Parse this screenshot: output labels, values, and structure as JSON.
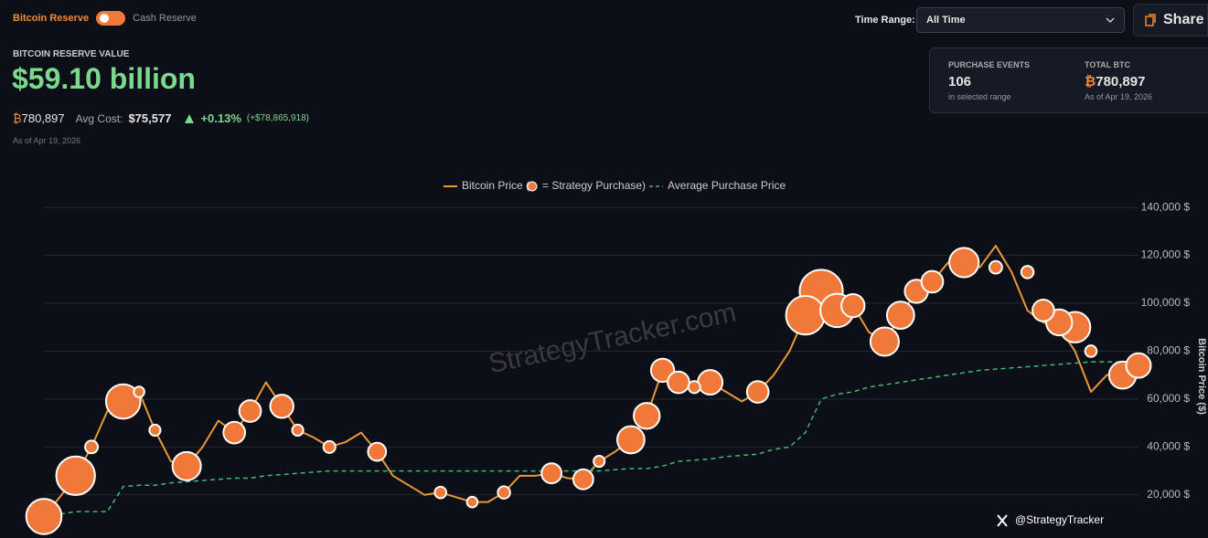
{
  "header": {
    "toggle_left": "Bitcoin Reserve",
    "toggle_right": "Cash Reserve",
    "reserve_label": "BITCOIN RESERVE VALUE",
    "reserve_value": "$59.10 billion",
    "btc_symbol": "₿",
    "btc_amount": "780,897",
    "avg_cost_label": "Avg Cost:",
    "avg_cost": "$75,577",
    "change_pct": "+0.13%",
    "change_abs": "(+$78,865,918)",
    "as_of": "As of Apr 19, 2026",
    "time_range_label": "Time Range:",
    "time_range_value": "All Time",
    "share": "Share"
  },
  "stats": [
    {
      "label": "PURCHASE EVENTS",
      "value": "106",
      "note": "in selected range"
    },
    {
      "label": "TOTAL BTC",
      "symbol": "₿",
      "value": "780,897",
      "note": "As of Apr 19, 2026"
    }
  ],
  "watermark": "StrategyTracker.com",
  "credit": "@StrategyTracker",
  "chart_data": {
    "type": "line",
    "y_label": "Bitcoin Price ($)",
    "grid": true,
    "ylim": [
      2000,
      145000
    ],
    "yticks": [
      {
        "value": 20000,
        "label": "20,000 $"
      },
      {
        "value": 40000,
        "label": "40,000 $"
      },
      {
        "value": 60000,
        "label": "60,000 $"
      },
      {
        "value": 80000,
        "label": "80,000 $"
      },
      {
        "value": 100000,
        "label": "100,000 $"
      },
      {
        "value": 120000,
        "label": "120,000 $"
      },
      {
        "value": 140000,
        "label": "140,000 $"
      }
    ],
    "categories": [
      null,
      null,
      null,
      null,
      null,
      null,
      null,
      null,
      null,
      null,
      null,
      null,
      null,
      null,
      null,
      null,
      null,
      null,
      null,
      null,
      null,
      null,
      null,
      null,
      null,
      null,
      null,
      null,
      null,
      null,
      null,
      null,
      null,
      null,
      null,
      null,
      null,
      null,
      null,
      null,
      null,
      null,
      null,
      null,
      null,
      null,
      null,
      null,
      null,
      null,
      null,
      null,
      null,
      null,
      null,
      null,
      null,
      null,
      null,
      null,
      null,
      null,
      null,
      null,
      null,
      null,
      null,
      null,
      null,
      null
    ],
    "series": [
      {
        "name": "Bitcoin Price (",
        "type": "line",
        "color": "#e8973a",
        "values": [
          11000,
          19000,
          28000,
          40000,
          55000,
          59000,
          63000,
          47000,
          34000,
          32000,
          40000,
          51000,
          46000,
          55000,
          67000,
          57000,
          47000,
          44000,
          40000,
          42000,
          46000,
          38000,
          28000,
          24000,
          20000,
          21000,
          19000,
          17000,
          17000,
          21000,
          28000,
          28000,
          29000,
          27000,
          26500,
          34000,
          38000,
          43000,
          53000,
          72000,
          67000,
          65000,
          67000,
          63000,
          59000,
          63000,
          70000,
          80000,
          95000,
          105000,
          97000,
          99000,
          88000,
          84000,
          95000,
          105000,
          109000,
          117000,
          117000,
          115000,
          124000,
          113000,
          97000,
          92000,
          90000,
          80000,
          63000,
          70000,
          72000,
          74000
        ]
      },
      {
        "name": "= Strategy Purchase)",
        "type": "bubble",
        "color": "#f07838",
        "values": [
          11000,
          null,
          28000,
          40000,
          null,
          59000,
          63000,
          47000,
          null,
          32000,
          null,
          null,
          46000,
          55000,
          null,
          57000,
          47000,
          null,
          40000,
          null,
          null,
          38000,
          null,
          null,
          null,
          21000,
          null,
          17000,
          null,
          21000,
          null,
          null,
          29000,
          null,
          26500,
          34000,
          null,
          43000,
          53000,
          72000,
          67000,
          65000,
          67000,
          null,
          null,
          63000,
          null,
          null,
          95000,
          105000,
          97000,
          99000,
          null,
          84000,
          95000,
          105000,
          109000,
          null,
          117000,
          null,
          115000,
          null,
          113000,
          97000,
          92000,
          90000,
          80000,
          null,
          70000,
          74000
        ],
        "sizes": [
          17000,
          null,
          21000,
          1000,
          null,
          16000,
          500,
          600,
          null,
          10000,
          null,
          null,
          5000,
          5000,
          null,
          6000,
          600,
          null,
          800,
          null,
          null,
          3000,
          null,
          null,
          null,
          700,
          null,
          500,
          null,
          900,
          null,
          null,
          4000,
          null,
          4000,
          600,
          null,
          9000,
          8000,
          6000,
          5000,
          800,
          7000,
          null,
          null,
          5000,
          null,
          null,
          21000,
          27000,
          15000,
          6000,
          null,
          10000,
          9000,
          6000,
          5000,
          null,
          11000,
          null,
          1000,
          null,
          900,
          5000,
          8000,
          12000,
          700,
          null,
          9000,
          7000
        ]
      },
      {
        "name": "Average Purchase Price",
        "type": "line",
        "color": "#3fb87a",
        "line_style": "dashed",
        "values": [
          11000,
          12000,
          13000,
          13000,
          13000,
          23500,
          24000,
          24000,
          25000,
          25500,
          26000,
          26500,
          27000,
          27000,
          28000,
          28500,
          29000,
          29500,
          30000,
          30000,
          30000,
          30000,
          30000,
          30000,
          30000,
          30000,
          30000,
          30000,
          30000,
          30000,
          30000,
          30000,
          30000,
          30000,
          30000,
          30000,
          30500,
          31000,
          31000,
          32000,
          34000,
          34500,
          35000,
          36000,
          36500,
          37000,
          39000,
          40000,
          46000,
          60000,
          62000,
          63000,
          65000,
          66000,
          67000,
          68000,
          69000,
          70000,
          71000,
          72000,
          72500,
          73000,
          73500,
          74000,
          74500,
          75000,
          75500,
          75500,
          75500,
          75500
        ]
      }
    ]
  }
}
